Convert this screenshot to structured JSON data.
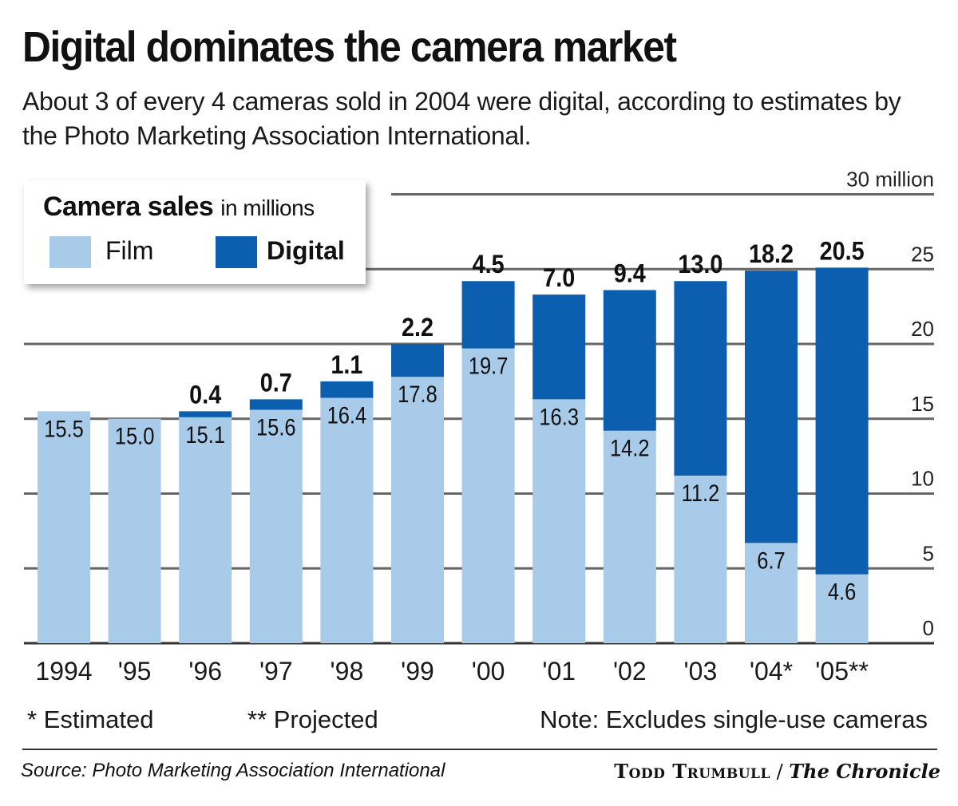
{
  "title": "Digital dominates the camera market",
  "subtitle": "About 3 of every 4 cameras sold in 2004 were digital, according to estimates by the Photo Marketing Association International.",
  "legend": {
    "title": "Camera sales",
    "title_suffix": "in millions",
    "film": "Film",
    "digital": "Digital"
  },
  "footnotes": {
    "estimated": "* Estimated",
    "projected": "** Projected",
    "note": "Note: Excludes single-use cameras"
  },
  "source": "Source: Photo Marketing Association International",
  "credit": {
    "name": "Todd Trumbull",
    "separator": " / ",
    "publication": "The Chronicle"
  },
  "colors": {
    "film": "#a8cbe9",
    "digital": "#0b5fae",
    "grid": "#666666"
  },
  "chart_data": {
    "type": "bar",
    "stacked": true,
    "categories": [
      "1994",
      "'95",
      "'96",
      "'97",
      "'98",
      "'99",
      "'00",
      "'01",
      "'02",
      "'03",
      "'04*",
      "'05**"
    ],
    "series": [
      {
        "name": "Film",
        "values": [
          15.5,
          15.0,
          15.1,
          15.6,
          16.4,
          17.8,
          19.7,
          16.3,
          14.2,
          11.2,
          6.7,
          4.6
        ]
      },
      {
        "name": "Digital",
        "values": [
          null,
          null,
          0.4,
          0.7,
          1.1,
          2.2,
          4.5,
          7.0,
          9.4,
          13.0,
          18.2,
          20.5
        ]
      }
    ],
    "ylim": [
      0,
      30
    ],
    "yticks": [
      "0",
      "5",
      "10",
      "15",
      "20",
      "25",
      "30 million"
    ],
    "grid": true,
    "y_axis_side": "right",
    "legend_placement": "top-left"
  }
}
